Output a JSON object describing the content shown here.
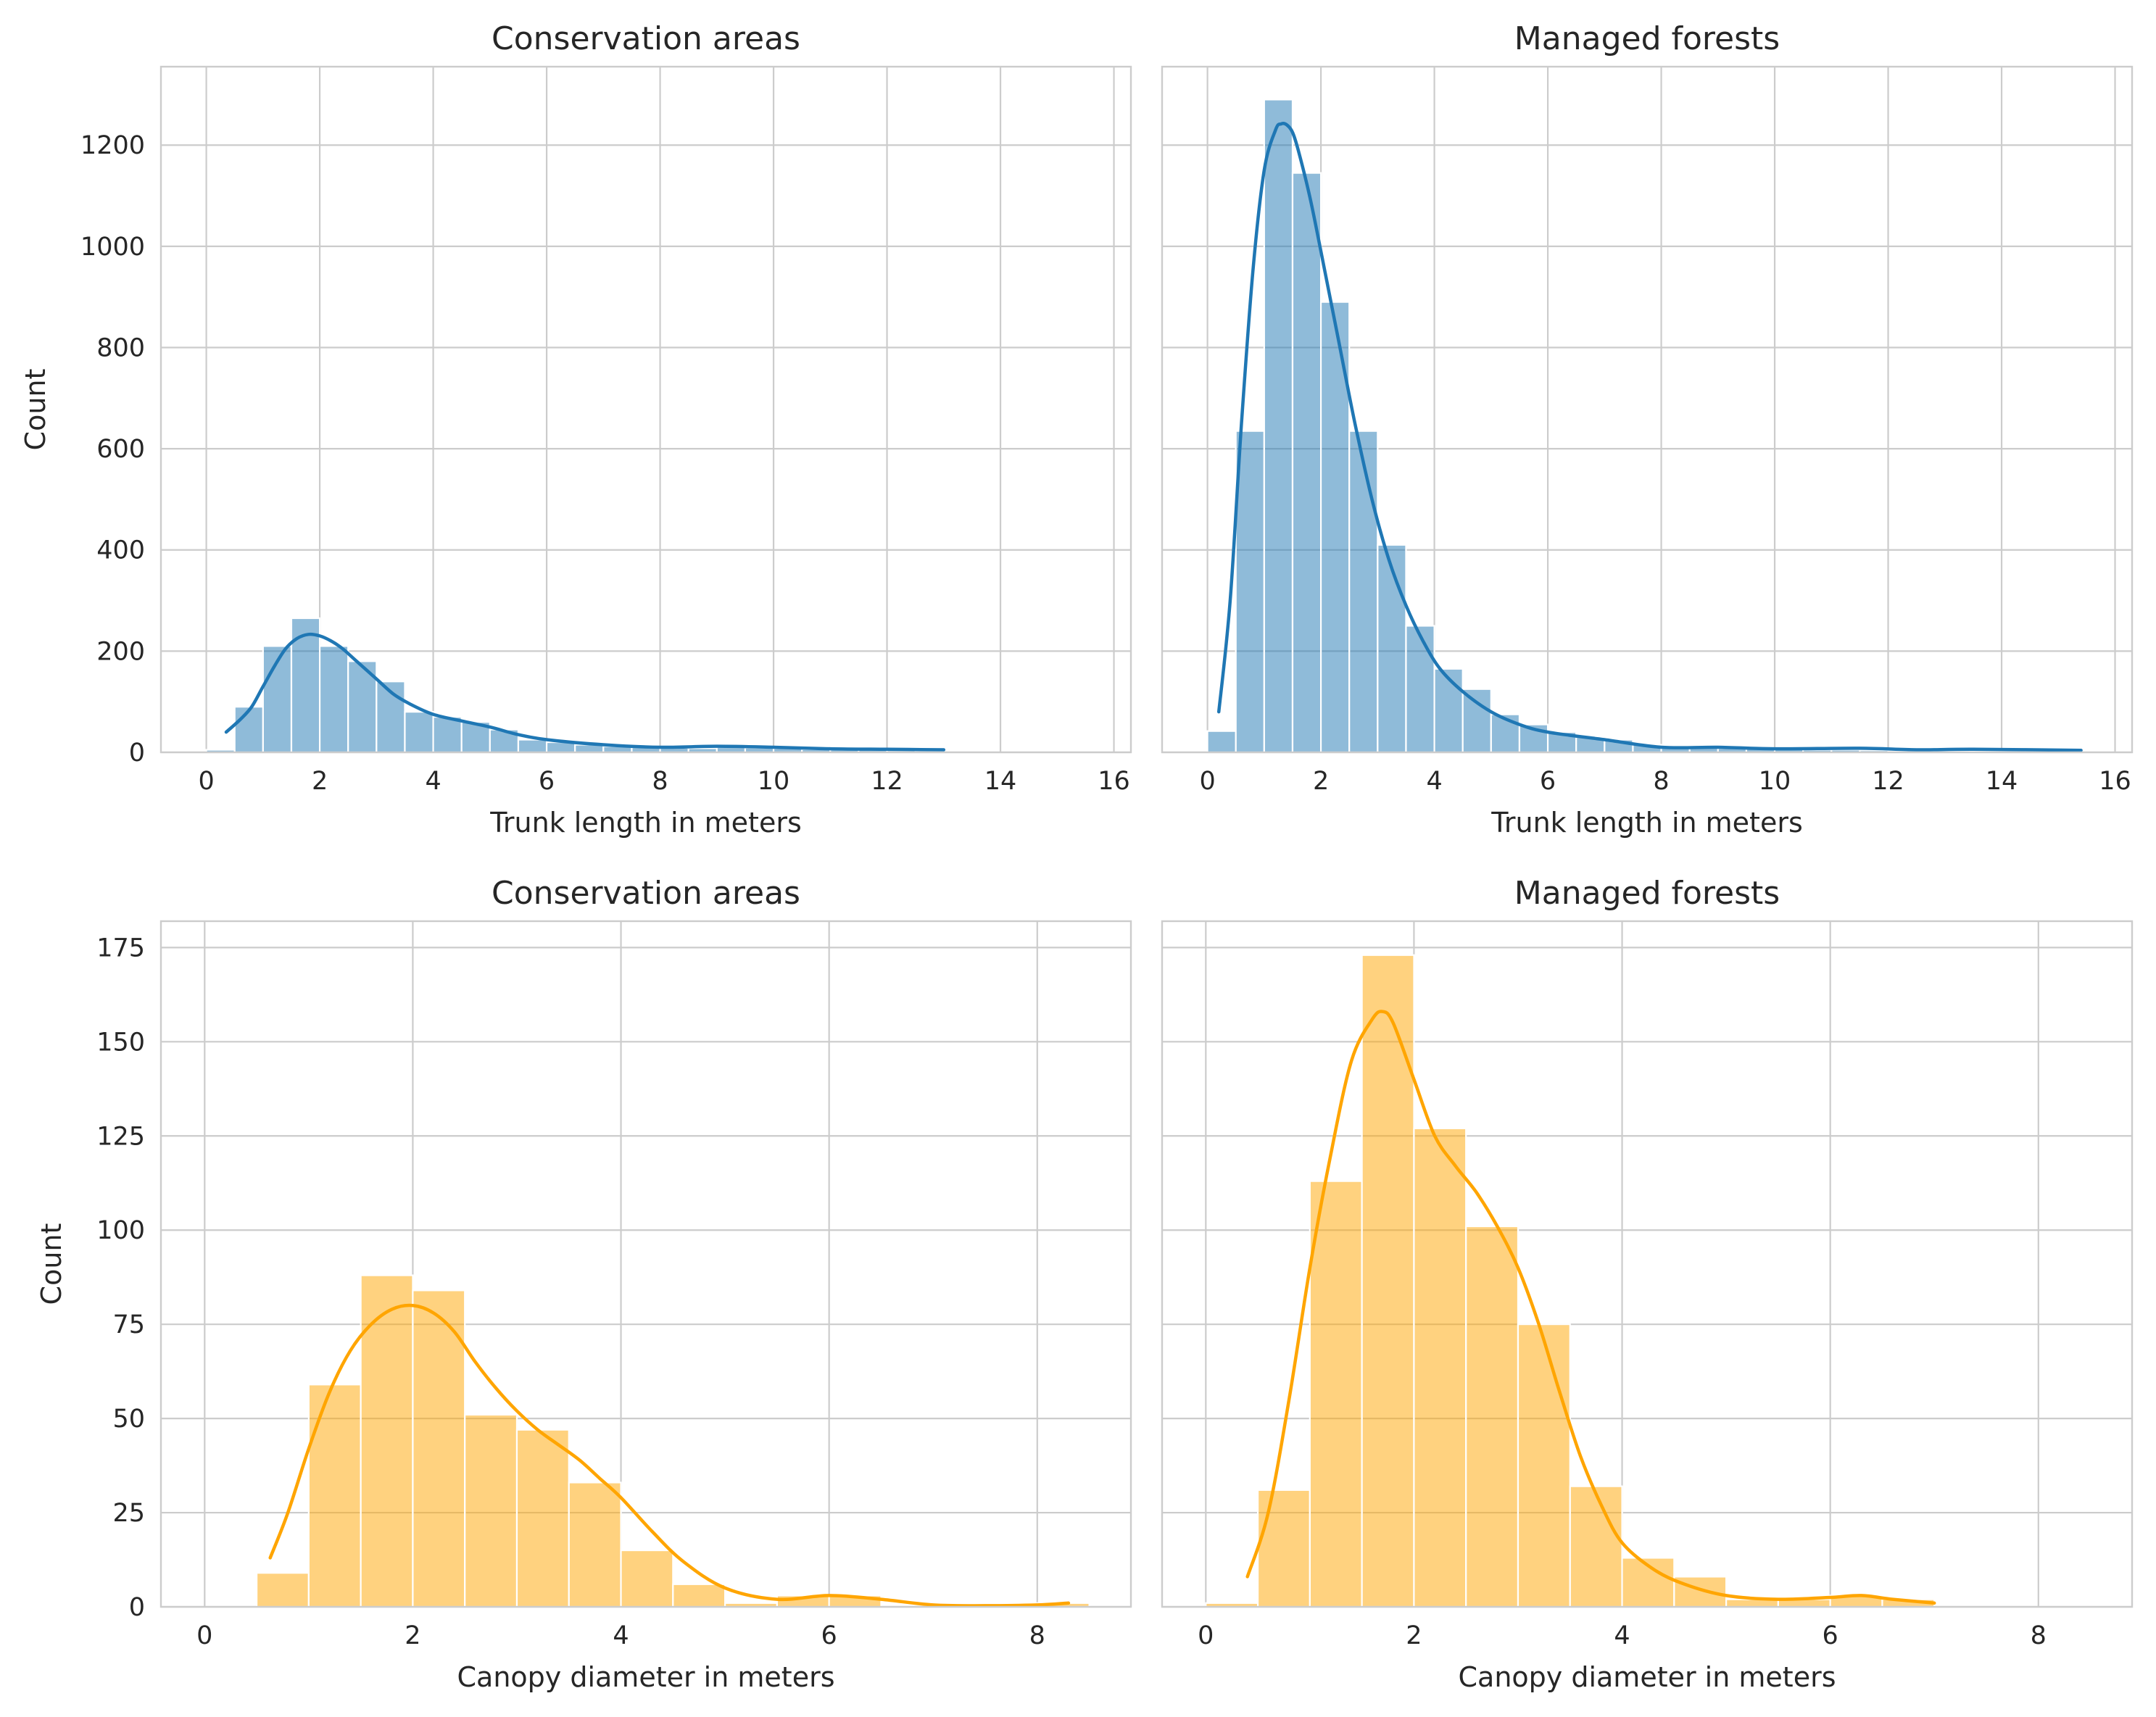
{
  "figure": {
    "background": "#ffffff",
    "grid_color": "#cccccc",
    "spine_color": "#cccccc",
    "text_color": "#262626"
  },
  "chart_data": [
    {
      "type": "bar",
      "subtype": "histogram-with-kde",
      "title": "Conservation areas",
      "xlabel": "Trunk length in meters",
      "ylabel": "Count",
      "xlim": [
        -0.8,
        16.3
      ],
      "ylim": [
        0,
        1355
      ],
      "xticks": [
        0,
        2,
        4,
        6,
        8,
        10,
        12,
        14,
        16
      ],
      "yticks": [
        0,
        200,
        400,
        600,
        800,
        1000,
        1200
      ],
      "show_yticklabels": true,
      "grid": true,
      "bar_color": "#1f77b4",
      "bar_opacity": 0.5,
      "kde_color": "#1f77b4",
      "bins": [
        {
          "x0": 0.0,
          "x1": 0.5,
          "count": 5
        },
        {
          "x0": 0.5,
          "x1": 1.0,
          "count": 90
        },
        {
          "x0": 1.0,
          "x1": 1.5,
          "count": 210
        },
        {
          "x0": 1.5,
          "x1": 2.0,
          "count": 265
        },
        {
          "x0": 2.0,
          "x1": 2.5,
          "count": 210
        },
        {
          "x0": 2.5,
          "x1": 3.0,
          "count": 180
        },
        {
          "x0": 3.0,
          "x1": 3.5,
          "count": 140
        },
        {
          "x0": 3.5,
          "x1": 4.0,
          "count": 80
        },
        {
          "x0": 4.0,
          "x1": 4.5,
          "count": 70
        },
        {
          "x0": 4.5,
          "x1": 5.0,
          "count": 60
        },
        {
          "x0": 5.0,
          "x1": 5.5,
          "count": 45
        },
        {
          "x0": 5.5,
          "x1": 6.0,
          "count": 25
        },
        {
          "x0": 6.0,
          "x1": 6.5,
          "count": 20
        },
        {
          "x0": 6.5,
          "x1": 7.0,
          "count": 15
        },
        {
          "x0": 7.0,
          "x1": 7.5,
          "count": 12
        },
        {
          "x0": 7.5,
          "x1": 8.0,
          "count": 10
        },
        {
          "x0": 8.0,
          "x1": 8.5,
          "count": 9
        },
        {
          "x0": 8.5,
          "x1": 9.0,
          "count": 8
        },
        {
          "x0": 9.0,
          "x1": 9.5,
          "count": 10
        },
        {
          "x0": 9.5,
          "x1": 10.0,
          "count": 9
        },
        {
          "x0": 10.0,
          "x1": 10.5,
          "count": 8
        },
        {
          "x0": 10.5,
          "x1": 11.0,
          "count": 6
        },
        {
          "x0": 11.0,
          "x1": 11.5,
          "count": 5
        },
        {
          "x0": 11.5,
          "x1": 12.0,
          "count": 5
        },
        {
          "x0": 12.0,
          "x1": 12.5,
          "count": 4
        },
        {
          "x0": 12.5,
          "x1": 13.0,
          "count": 3
        }
      ],
      "kde": {
        "x": [
          0.35,
          0.6,
          0.8,
          1.0,
          1.2,
          1.4,
          1.6,
          1.8,
          2.0,
          2.2,
          2.4,
          2.6,
          2.8,
          3.0,
          3.3,
          3.6,
          4.0,
          4.5,
          5.0,
          5.5,
          6.0,
          7.0,
          8.0,
          9.0,
          10.0,
          11.0,
          12.0,
          13.0
        ],
        "y": [
          40,
          65,
          90,
          130,
          170,
          205,
          225,
          233,
          230,
          220,
          205,
          185,
          165,
          145,
          115,
          95,
          75,
          62,
          50,
          35,
          25,
          15,
          10,
          12,
          10,
          7,
          6,
          5
        ]
      }
    },
    {
      "type": "bar",
      "subtype": "histogram-with-kde",
      "title": "Managed forests",
      "xlabel": "Trunk length in meters",
      "ylabel": "",
      "xlim": [
        -0.8,
        16.3
      ],
      "ylim": [
        0,
        1355
      ],
      "xticks": [
        0,
        2,
        4,
        6,
        8,
        10,
        12,
        14,
        16
      ],
      "yticks": [
        0,
        200,
        400,
        600,
        800,
        1000,
        1200
      ],
      "show_yticklabels": false,
      "grid": true,
      "bar_color": "#1f77b4",
      "bar_opacity": 0.5,
      "kde_color": "#1f77b4",
      "bins": [
        {
          "x0": 0.0,
          "x1": 0.5,
          "count": 42
        },
        {
          "x0": 0.5,
          "x1": 1.0,
          "count": 635
        },
        {
          "x0": 1.0,
          "x1": 1.5,
          "count": 1290
        },
        {
          "x0": 1.5,
          "x1": 2.0,
          "count": 1145
        },
        {
          "x0": 2.0,
          "x1": 2.5,
          "count": 890
        },
        {
          "x0": 2.5,
          "x1": 3.0,
          "count": 635
        },
        {
          "x0": 3.0,
          "x1": 3.5,
          "count": 410
        },
        {
          "x0": 3.5,
          "x1": 4.0,
          "count": 250
        },
        {
          "x0": 4.0,
          "x1": 4.5,
          "count": 165
        },
        {
          "x0": 4.5,
          "x1": 5.0,
          "count": 125
        },
        {
          "x0": 5.0,
          "x1": 5.5,
          "count": 75
        },
        {
          "x0": 5.5,
          "x1": 6.0,
          "count": 55
        },
        {
          "x0": 6.0,
          "x1": 6.5,
          "count": 40
        },
        {
          "x0": 6.5,
          "x1": 7.0,
          "count": 30
        },
        {
          "x0": 7.0,
          "x1": 7.5,
          "count": 25
        },
        {
          "x0": 7.5,
          "x1": 8.0,
          "count": 15
        },
        {
          "x0": 8.0,
          "x1": 8.5,
          "count": 10
        },
        {
          "x0": 8.5,
          "x1": 9.0,
          "count": 10
        },
        {
          "x0": 9.0,
          "x1": 9.5,
          "count": 8
        },
        {
          "x0": 9.5,
          "x1": 10.0,
          "count": 8
        },
        {
          "x0": 10.0,
          "x1": 10.5,
          "count": 6
        },
        {
          "x0": 10.5,
          "x1": 11.0,
          "count": 5
        },
        {
          "x0": 11.0,
          "x1": 11.5,
          "count": 5
        },
        {
          "x0": 11.5,
          "x1": 12.0,
          "count": 4
        },
        {
          "x0": 12.0,
          "x1": 12.5,
          "count": 3
        },
        {
          "x0": 12.5,
          "x1": 13.0,
          "count": 3
        },
        {
          "x0": 13.0,
          "x1": 13.5,
          "count": 3
        },
        {
          "x0": 13.5,
          "x1": 14.0,
          "count": 2
        },
        {
          "x0": 14.0,
          "x1": 14.5,
          "count": 2
        },
        {
          "x0": 14.5,
          "x1": 15.0,
          "count": 2
        },
        {
          "x0": 15.0,
          "x1": 15.4,
          "count": 2
        }
      ],
      "kde": {
        "x": [
          0.2,
          0.4,
          0.6,
          0.8,
          1.0,
          1.2,
          1.3,
          1.4,
          1.5,
          1.6,
          1.8,
          2.0,
          2.3,
          2.6,
          2.9,
          3.2,
          3.5,
          3.8,
          4.1,
          4.5,
          5.0,
          5.5,
          6.0,
          7.0,
          8.0,
          9.0,
          10.0,
          11.5,
          12.5,
          13.5,
          15.4
        ],
        "y": [
          80,
          300,
          650,
          950,
          1150,
          1230,
          1242,
          1240,
          1225,
          1190,
          1100,
          990,
          820,
          650,
          500,
          380,
          290,
          220,
          165,
          120,
          80,
          55,
          40,
          25,
          10,
          10,
          7,
          8,
          5,
          6,
          4
        ]
      }
    },
    {
      "type": "bar",
      "subtype": "histogram-with-kde",
      "title": "Conservation areas",
      "xlabel": "Canopy diameter in meters",
      "ylabel": "Count",
      "xlim": [
        -0.42,
        8.9
      ],
      "ylim": [
        0,
        182
      ],
      "xticks": [
        0,
        2,
        4,
        6,
        8
      ],
      "yticks": [
        0,
        25,
        50,
        75,
        100,
        125,
        150,
        175
      ],
      "show_yticklabels": true,
      "grid": true,
      "bar_color": "#ffa500",
      "bar_opacity": 0.5,
      "kde_color": "#ffa500",
      "bins": [
        {
          "x0": 0.5,
          "x1": 1.0,
          "count": 9
        },
        {
          "x0": 1.0,
          "x1": 1.5,
          "count": 59
        },
        {
          "x0": 1.5,
          "x1": 2.0,
          "count": 88
        },
        {
          "x0": 2.0,
          "x1": 2.5,
          "count": 84
        },
        {
          "x0": 2.5,
          "x1": 3.0,
          "count": 51
        },
        {
          "x0": 3.0,
          "x1": 3.5,
          "count": 47
        },
        {
          "x0": 3.5,
          "x1": 4.0,
          "count": 33
        },
        {
          "x0": 4.0,
          "x1": 4.5,
          "count": 15
        },
        {
          "x0": 4.5,
          "x1": 5.0,
          "count": 6
        },
        {
          "x0": 5.0,
          "x1": 5.5,
          "count": 1
        },
        {
          "x0": 5.5,
          "x1": 6.0,
          "count": 3
        },
        {
          "x0": 6.0,
          "x1": 6.5,
          "count": 3
        },
        {
          "x0": 6.5,
          "x1": 7.0,
          "count": 0
        },
        {
          "x0": 7.0,
          "x1": 7.5,
          "count": 0
        },
        {
          "x0": 7.5,
          "x1": 8.0,
          "count": 0
        },
        {
          "x0": 8.0,
          "x1": 8.5,
          "count": 1
        }
      ],
      "kde": {
        "x": [
          0.63,
          0.8,
          1.0,
          1.2,
          1.4,
          1.6,
          1.8,
          2.0,
          2.2,
          2.4,
          2.6,
          2.8,
          3.0,
          3.2,
          3.4,
          3.6,
          3.8,
          4.0,
          4.3,
          4.6,
          5.0,
          5.5,
          6.0,
          6.5,
          7.0,
          7.5,
          8.0,
          8.3
        ],
        "y": [
          13,
          25,
          42,
          57,
          68,
          75,
          79,
          80,
          78,
          73,
          65,
          58,
          52,
          47,
          43,
          39,
          34,
          29,
          20,
          12,
          5,
          2,
          3,
          2,
          0.5,
          0.3,
          0.5,
          1
        ]
      }
    },
    {
      "type": "bar",
      "subtype": "histogram-with-kde",
      "title": "Managed forests",
      "xlabel": "Canopy diameter in meters",
      "ylabel": "",
      "xlim": [
        -0.42,
        8.9
      ],
      "ylim": [
        0,
        182
      ],
      "xticks": [
        0,
        2,
        4,
        6,
        8
      ],
      "yticks": [
        0,
        25,
        50,
        75,
        100,
        125,
        150,
        175
      ],
      "show_yticklabels": false,
      "grid": true,
      "bar_color": "#ffa500",
      "bar_opacity": 0.5,
      "kde_color": "#ffa500",
      "bins": [
        {
          "x0": 0.0,
          "x1": 0.5,
          "count": 1
        },
        {
          "x0": 0.5,
          "x1": 1.0,
          "count": 31
        },
        {
          "x0": 1.0,
          "x1": 1.5,
          "count": 113
        },
        {
          "x0": 1.5,
          "x1": 2.0,
          "count": 173
        },
        {
          "x0": 2.0,
          "x1": 2.5,
          "count": 127
        },
        {
          "x0": 2.5,
          "x1": 3.0,
          "count": 101
        },
        {
          "x0": 3.0,
          "x1": 3.5,
          "count": 75
        },
        {
          "x0": 3.5,
          "x1": 4.0,
          "count": 32
        },
        {
          "x0": 4.0,
          "x1": 4.5,
          "count": 13
        },
        {
          "x0": 4.5,
          "x1": 5.0,
          "count": 8
        },
        {
          "x0": 5.0,
          "x1": 5.5,
          "count": 2
        },
        {
          "x0": 5.5,
          "x1": 6.0,
          "count": 2
        },
        {
          "x0": 6.0,
          "x1": 6.5,
          "count": 3
        },
        {
          "x0": 6.5,
          "x1": 7.0,
          "count": 2
        }
      ],
      "kde": {
        "x": [
          0.4,
          0.6,
          0.8,
          1.0,
          1.2,
          1.4,
          1.6,
          1.7,
          1.8,
          2.0,
          2.2,
          2.4,
          2.6,
          2.8,
          3.0,
          3.2,
          3.4,
          3.6,
          3.8,
          4.0,
          4.3,
          4.6,
          5.0,
          5.5,
          6.0,
          6.3,
          6.6,
          7.0
        ],
        "y": [
          8,
          25,
          55,
          90,
          120,
          145,
          156,
          158,
          155,
          140,
          125,
          117,
          110,
          101,
          90,
          75,
          57,
          40,
          27,
          17,
          10,
          6,
          3,
          2,
          2.5,
          3,
          2,
          1
        ]
      }
    }
  ]
}
